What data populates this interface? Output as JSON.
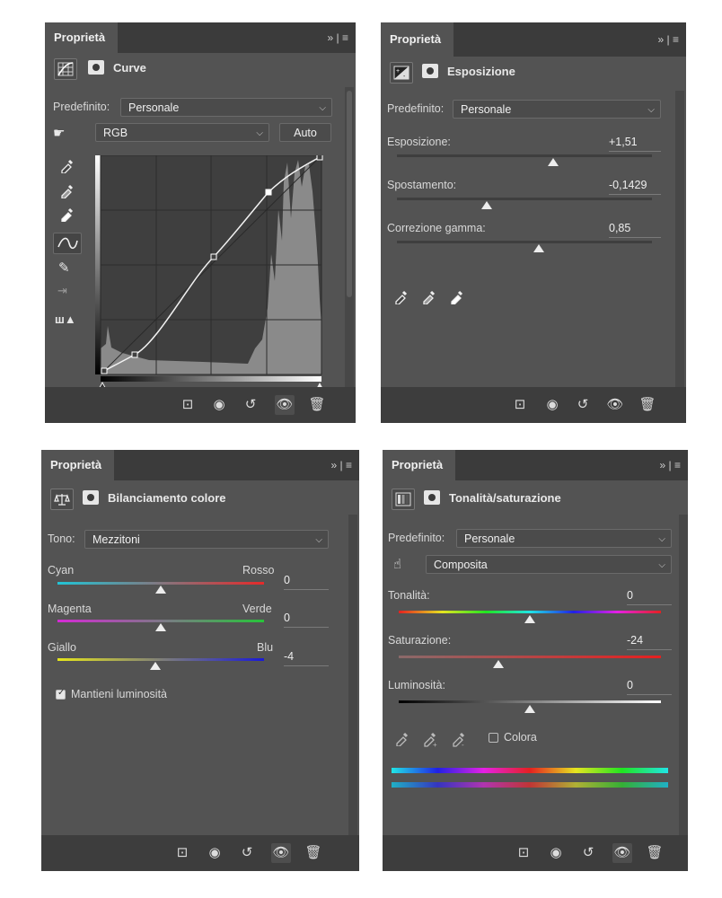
{
  "panels": {
    "curves": {
      "tab": "Proprietà",
      "menu": "» | ≡",
      "title": "Curve",
      "preset_label": "Predefinito:",
      "preset_value": "Personale",
      "channel_value": "RGB",
      "auto_label": "Auto"
    },
    "exposure": {
      "tab": "Proprietà",
      "menu": "» | ≡",
      "title": "Esposizione",
      "preset_label": "Predefinito:",
      "preset_value": "Personale",
      "sliders": [
        {
          "label": "Esposizione:",
          "value": "+1,51",
          "level": 0.69
        },
        {
          "label": "Spostamento:",
          "value": "-0,1429",
          "level": 0.36
        },
        {
          "label": "Correzione gamma:",
          "value": "0,85",
          "level": 0.55
        }
      ]
    },
    "color_balance": {
      "tab": "Proprietà",
      "menu": "» | ≡",
      "title": "Bilanciamento colore",
      "tone_label": "Tono:",
      "tone_value": "Mezzitoni",
      "sliders": [
        {
          "left": "Cyan",
          "right": "Rosso",
          "value": "0",
          "level": 0.5
        },
        {
          "left": "Magenta",
          "right": "Verde",
          "value": "0",
          "level": 0.5
        },
        {
          "left": "Giallo",
          "right": "Blu",
          "value": "-4",
          "level": 0.47
        }
      ],
      "preserve_label": "Mantieni luminosità",
      "preserve_checked": true
    },
    "hue_sat": {
      "tab": "Proprietà",
      "menu": "» | ≡",
      "title": "Tonalità/saturazione",
      "preset_label": "Predefinito:",
      "preset_value": "Personale",
      "range_value": "Composita",
      "sliders": [
        {
          "label": "Tonalità:",
          "value": "0",
          "level": 0.5
        },
        {
          "label": "Saturazione:",
          "value": "-24",
          "level": 0.38
        },
        {
          "label": "Luminosità:",
          "value": "0",
          "level": 0.5
        }
      ],
      "colorize_label": "Colora",
      "colorize_checked": false
    }
  },
  "icons": {
    "bottom_bar": [
      "clip-to-layer-icon",
      "view-previous-icon",
      "reset-icon",
      "visibility-icon",
      "trash-icon"
    ]
  }
}
